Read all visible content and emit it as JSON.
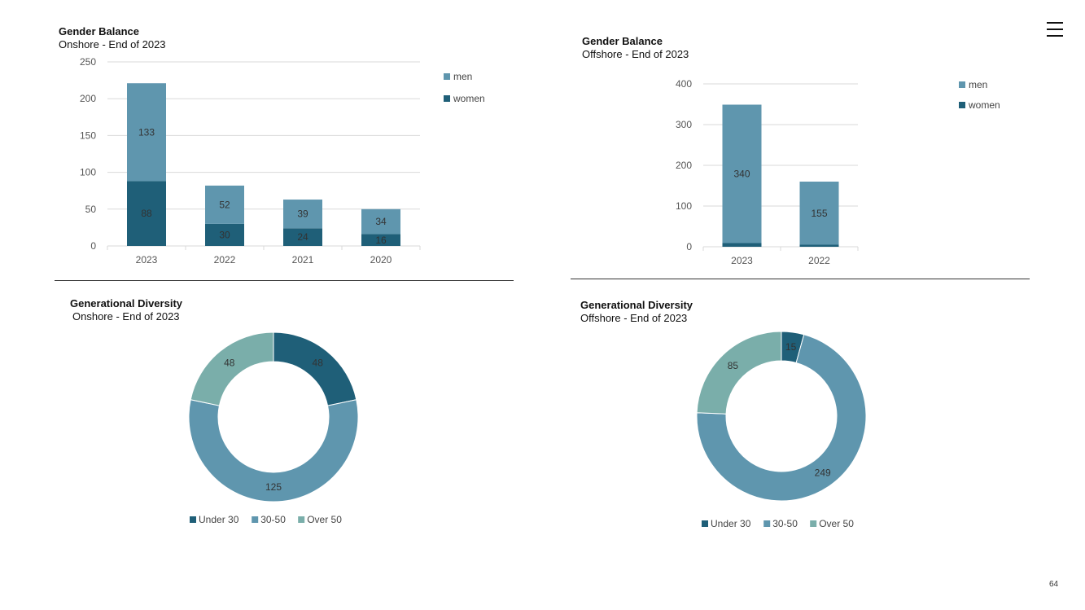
{
  "colors": {
    "women": "#1f5f78",
    "men": "#5f96ae",
    "under30": "#1f5f78",
    "mid": "#5f96ae",
    "over50": "#7aaeaa",
    "grid": "#d9d9d9",
    "axis_text": "#555555"
  },
  "page": {
    "number": "64",
    "menu_icon": "hamburger-menu-icon"
  },
  "chart_data": [
    {
      "id": "onshore-gender",
      "type": "bar",
      "stacked": true,
      "title": "Gender Balance",
      "subtitle": "Onshore - End of 2023",
      "categories": [
        "2023",
        "2022",
        "2021",
        "2020"
      ],
      "series": [
        {
          "name": "women",
          "values": [
            88,
            30,
            24,
            16
          ]
        },
        {
          "name": "men",
          "values": [
            133,
            52,
            39,
            34
          ]
        }
      ],
      "ylim": [
        0,
        250
      ],
      "yticks": [
        0,
        50,
        100,
        150,
        200,
        250
      ],
      "legend": [
        "men",
        "women"
      ],
      "legend_position": "right"
    },
    {
      "id": "offshore-gender",
      "type": "bar",
      "stacked": true,
      "title": "Gender Balance",
      "subtitle": "Offshore - End of 2023",
      "categories": [
        "2023",
        "2022"
      ],
      "series": [
        {
          "name": "women",
          "values": [
            9,
            5
          ]
        },
        {
          "name": "men",
          "values": [
            340,
            155
          ]
        }
      ],
      "ylim": [
        0,
        400
      ],
      "yticks": [
        0,
        100,
        200,
        300,
        400
      ],
      "legend": [
        "men",
        "women"
      ],
      "legend_position": "right"
    },
    {
      "id": "onshore-generation",
      "type": "pie",
      "donut": true,
      "title": "Generational Diversity",
      "subtitle": "Onshore - End of 2023",
      "labels": [
        "Under 30",
        "30-50",
        "Over 50"
      ],
      "values": [
        48,
        125,
        48
      ],
      "legend_position": "bottom"
    },
    {
      "id": "offshore-generation",
      "type": "pie",
      "donut": true,
      "title": "Generational Diversity",
      "subtitle": "Offshore - End of 2023",
      "labels": [
        "Under 30",
        "30-50",
        "Over 50"
      ],
      "values": [
        15,
        249,
        85
      ],
      "legend_position": "bottom"
    }
  ]
}
